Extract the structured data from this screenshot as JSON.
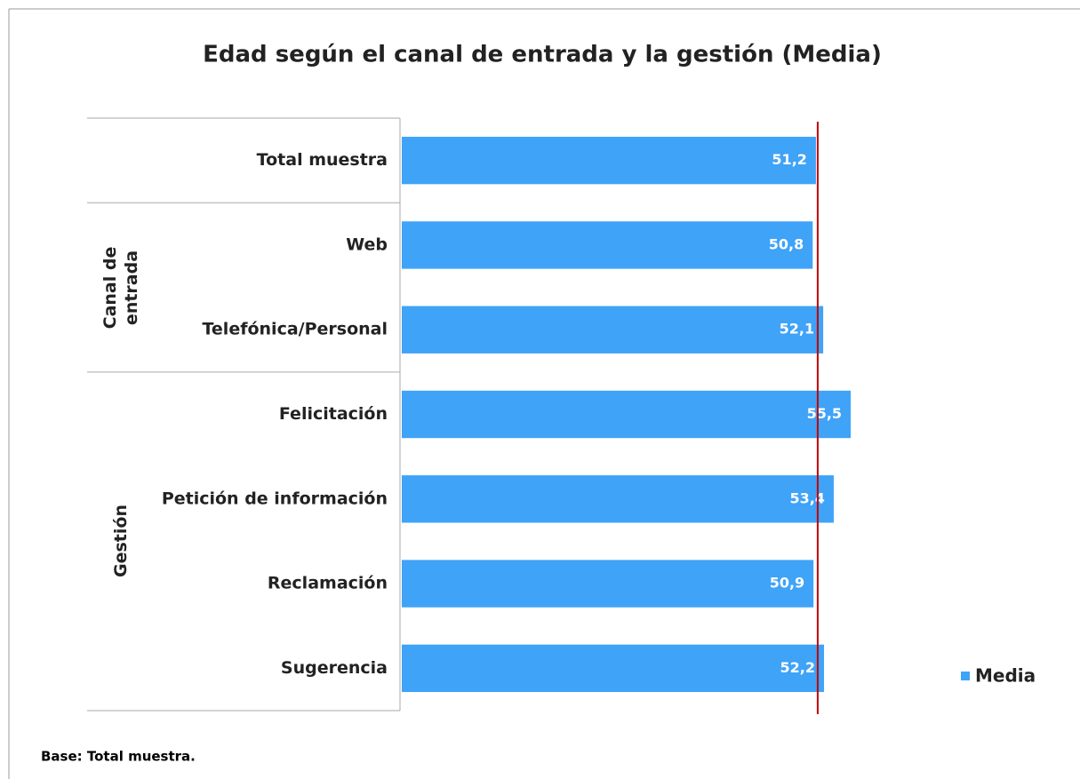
{
  "chart_data": {
    "type": "bar",
    "orientation": "horizontal",
    "title": "Edad según el canal de entrada y la gestión (Media)",
    "categories": [
      "Total muestra",
      "Web",
      "Telefónica/Personal",
      "Felicitación",
      "Petición de información",
      "Reclamación",
      "Sugerencia"
    ],
    "category_groups": [
      null,
      "Canal de entrada",
      "Canal de entrada",
      "Gestión",
      "Gestión",
      "Gestión",
      "Gestión"
    ],
    "series": [
      {
        "name": "Media",
        "color": "#3fa3f8",
        "values": [
          51.2,
          50.8,
          52.1,
          55.5,
          53.4,
          50.9,
          52.2
        ],
        "value_labels": [
          "51,2",
          "50,8",
          "52,1",
          "55,5",
          "53,4",
          "50,9",
          "52,2"
        ]
      }
    ],
    "xlim": [
      0,
      60
    ],
    "reference_line_color": "#c00000",
    "legend": "right",
    "footnote": "Base: Total muestra."
  }
}
